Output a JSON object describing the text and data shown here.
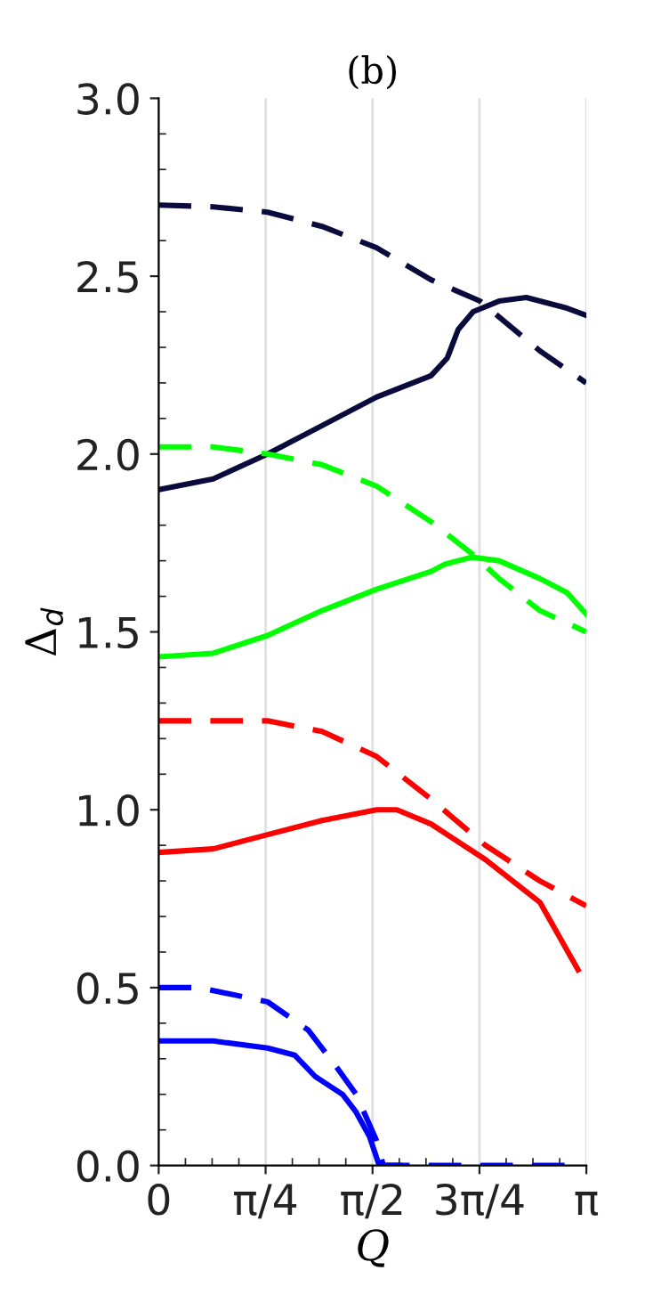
{
  "chart_data": {
    "type": "line",
    "title": "(b)",
    "xlabel": "Q",
    "ylabel": "Δ$_{d}$",
    "xlim": [
      0,
      3.1416
    ],
    "ylim": [
      0,
      3.0
    ],
    "xticks": [
      0,
      {
        "value": 0.7854,
        "label": "π/4"
      },
      {
        "value": 1.5708,
        "label": "π/2"
      },
      {
        "value": 2.3562,
        "label": "3π/4"
      },
      {
        "value": 3.1416,
        "label": "π"
      }
    ],
    "yticks": [
      {
        "value": 0,
        "label": "0.0"
      },
      0.5,
      {
        "value": 1,
        "label": "1.0"
      },
      1.5,
      {
        "value": 2,
        "label": "2.0"
      },
      2.5,
      {
        "value": 3,
        "label": "3.0"
      }
    ],
    "grid": "x",
    "marker": "none",
    "series": [
      {
        "color": "#0a0a3c",
        "line_style": "dashed",
        "x": [
          0,
          0.4,
          0.8,
          1.2,
          1.6,
          2.0,
          2.36,
          2.8,
          3.14
        ],
        "values": [
          2.7,
          2.695,
          2.68,
          2.64,
          2.58,
          2.49,
          2.43,
          2.29,
          2.2
        ]
      },
      {
        "color": "#0a0a3c",
        "line_style": "solid",
        "x": [
          0,
          0.4,
          0.8,
          1.2,
          1.6,
          2.0,
          2.12,
          2.2,
          2.31,
          2.5,
          2.7,
          3.0,
          3.14
        ],
        "values": [
          1.9,
          1.93,
          2.0,
          2.08,
          2.16,
          2.22,
          2.27,
          2.35,
          2.4,
          2.43,
          2.44,
          2.41,
          2.39
        ]
      },
      {
        "color": "#00ff00",
        "line_style": "dashed",
        "x": [
          0,
          0.4,
          0.8,
          1.2,
          1.6,
          2.0,
          2.3,
          2.5,
          2.8,
          3.14
        ],
        "values": [
          2.02,
          2.02,
          2.0,
          1.97,
          1.91,
          1.81,
          1.72,
          1.65,
          1.56,
          1.5
        ]
      },
      {
        "color": "#00ff00",
        "line_style": "solid",
        "x": [
          0,
          0.4,
          0.8,
          1.2,
          1.6,
          2.0,
          2.1,
          2.3,
          2.5,
          2.8,
          3.0,
          3.14
        ],
        "values": [
          1.43,
          1.44,
          1.49,
          1.56,
          1.62,
          1.67,
          1.69,
          1.71,
          1.7,
          1.65,
          1.61,
          1.55
        ]
      },
      {
        "color": "#ff0000",
        "line_style": "dashed",
        "x": [
          0,
          0.4,
          0.8,
          1.2,
          1.6,
          2.0,
          2.4,
          2.8,
          3.14
        ],
        "values": [
          1.25,
          1.25,
          1.25,
          1.22,
          1.15,
          1.03,
          0.9,
          0.8,
          0.73
        ]
      },
      {
        "color": "#ff0000",
        "line_style": "solid",
        "x": [
          0,
          0.4,
          0.8,
          1.2,
          1.6,
          1.75,
          2.0,
          2.4,
          2.8,
          3.08
        ],
        "values": [
          0.88,
          0.89,
          0.93,
          0.97,
          1.0,
          1.0,
          0.96,
          0.86,
          0.74,
          0.55
        ]
      },
      {
        "color": "#0000ff",
        "line_style": "dashed",
        "x": [
          0,
          0.3,
          0.8,
          1.1,
          1.3,
          1.45,
          1.6,
          1.65,
          2.2,
          2.8,
          3.1
        ],
        "values": [
          0.5,
          0.5,
          0.46,
          0.38,
          0.28,
          0.2,
          0.07,
          0.0,
          0.0,
          0.0,
          0.0
        ]
      },
      {
        "color": "#0000ff",
        "line_style": "solid",
        "x": [
          0,
          0.4,
          0.8,
          1.0,
          1.15,
          1.35,
          1.45,
          1.55,
          1.62,
          1.77
        ],
        "values": [
          0.35,
          0.35,
          0.33,
          0.31,
          0.25,
          0.2,
          0.15,
          0.08,
          0.0,
          0.0
        ]
      }
    ]
  }
}
